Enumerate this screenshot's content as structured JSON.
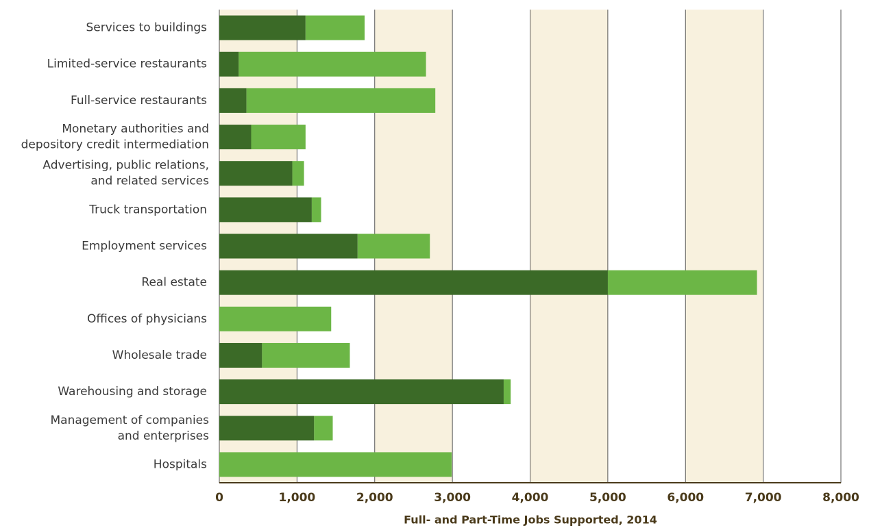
{
  "chart_data": {
    "type": "stacked-bar-horizontal",
    "categories": [
      "Services to buildings",
      "Limited-service restaurants",
      "Full-service restaurants",
      "Monetary authorities and\ndepository credit intermediation",
      "Advertising, public relations,\nand related services",
      "Truck transportation",
      "Employment services",
      "Real estate",
      "Offices of physicians",
      "Wholesale trade",
      "Warehousing and storage",
      "Management of companies\nand enterprises",
      "Hospitals"
    ],
    "series": [
      {
        "color": "#3b6a27",
        "values": [
          1110,
          250,
          350,
          410,
          940,
          1190,
          1780,
          5000,
          0,
          550,
          3660,
          1220,
          0
        ]
      },
      {
        "color": "#6cb646",
        "values": [
          760,
          2410,
          2430,
          700,
          150,
          120,
          930,
          1920,
          1440,
          1130,
          90,
          240,
          2990
        ]
      }
    ],
    "xlim": [
      0,
      8000
    ],
    "xticks": [
      0,
      {
        "value": 1000,
        "label": "1,000"
      },
      {
        "value": 2000,
        "label": "2,000"
      },
      {
        "value": 3000,
        "label": "3,000"
      },
      {
        "value": 4000,
        "label": "4,000"
      },
      {
        "value": 5000,
        "label": "5,000"
      },
      {
        "value": 6000,
        "label": "6,000"
      },
      {
        "value": 7000,
        "label": "7,000"
      },
      {
        "value": 8000,
        "label": "8,000"
      }
    ],
    "xlabel": "Full- and Part-Time Jobs Supported, 2014",
    "band_color": "#f8f1de",
    "grid": true
  }
}
